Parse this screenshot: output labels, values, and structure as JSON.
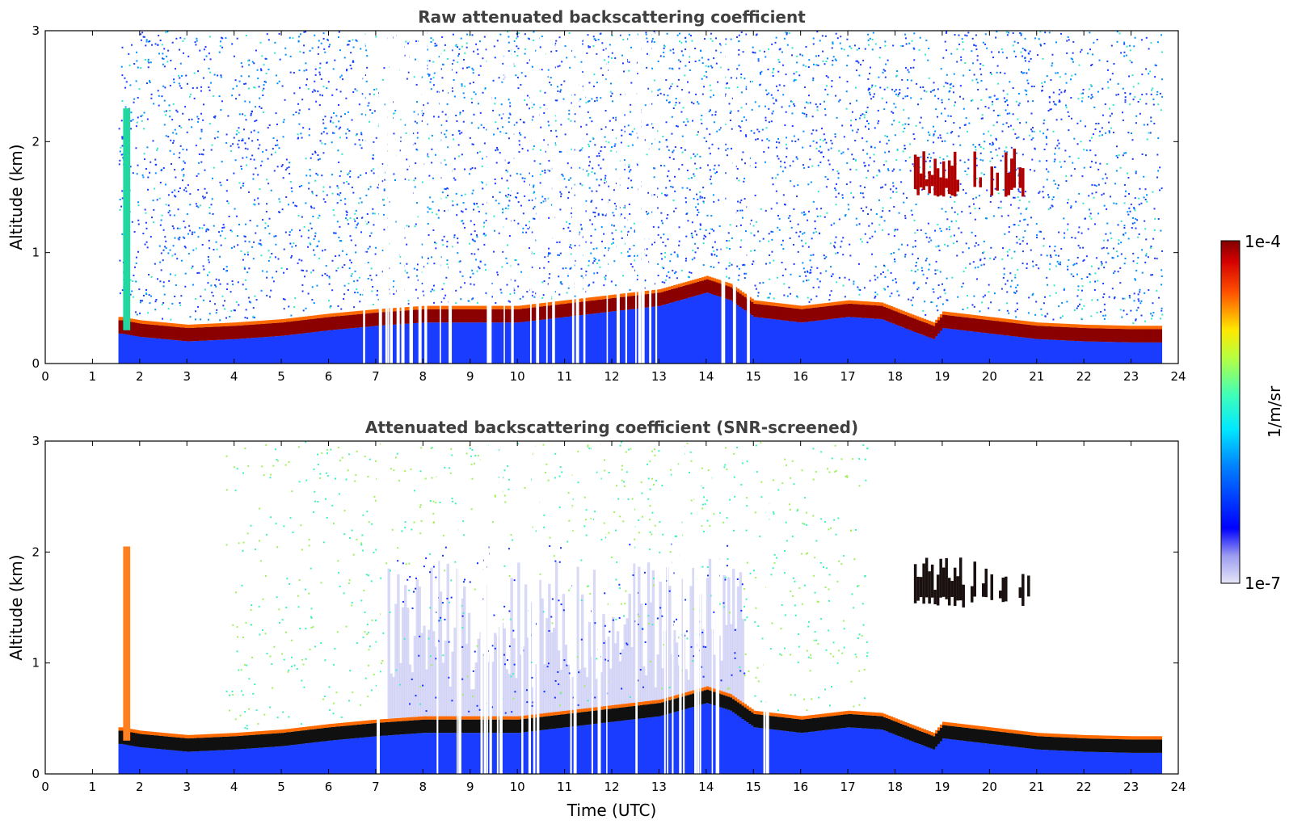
{
  "chart_data": [
    {
      "type": "heatmap",
      "title": "Raw attenuated backscattering coefficient",
      "xlabel": "",
      "ylabel": "Altitude (km)",
      "xlim": [
        0,
        24
      ],
      "ylim": [
        0,
        3
      ],
      "x_ticks": [
        "0",
        "1",
        "2",
        "3",
        "4",
        "5",
        "6",
        "7",
        "8",
        "9",
        "10",
        "11",
        "12",
        "13",
        "14",
        "15",
        "16",
        "17",
        "18",
        "19",
        "20",
        "21",
        "22",
        "23",
        "24"
      ],
      "y_ticks": [
        "0",
        "1",
        "2",
        "3"
      ],
      "data_time_range": [
        1.55,
        23.65
      ],
      "aerosol_layer_top_km": {
        "time": [
          1.6,
          2,
          3,
          4,
          5,
          6,
          7,
          8,
          9,
          10,
          11,
          12,
          13,
          14,
          14.5,
          15,
          16,
          17,
          17.7,
          18.3,
          18.8,
          19,
          20,
          21,
          22,
          23,
          23.65
        ],
        "height": [
          0.35,
          0.32,
          0.28,
          0.3,
          0.33,
          0.38,
          0.42,
          0.45,
          0.45,
          0.45,
          0.5,
          0.55,
          0.6,
          0.72,
          0.65,
          0.5,
          0.45,
          0.5,
          0.48,
          0.38,
          0.3,
          0.4,
          0.35,
          0.3,
          0.28,
          0.27,
          0.27
        ]
      },
      "elevated_cloud": {
        "time_range": [
          18.4,
          20.8
        ],
        "altitude_km": [
          1.5,
          1.95
        ]
      },
      "screened": false
    },
    {
      "type": "heatmap",
      "title": "Attenuated backscattering coefficient (SNR-screened)",
      "xlabel": "Time (UTC)",
      "ylabel": "Altitude (km)",
      "xlim": [
        0,
        24
      ],
      "ylim": [
        0,
        3
      ],
      "x_ticks": [
        "0",
        "1",
        "2",
        "3",
        "4",
        "5",
        "6",
        "7",
        "8",
        "9",
        "10",
        "11",
        "12",
        "13",
        "14",
        "15",
        "16",
        "17",
        "18",
        "19",
        "20",
        "21",
        "22",
        "23",
        "24"
      ],
      "y_ticks": [
        "0",
        "1",
        "2",
        "3"
      ],
      "data_time_range": [
        1.55,
        23.65
      ],
      "aerosol_layer_top_km": {
        "time": [
          1.6,
          2,
          3,
          4,
          5,
          6,
          7,
          8,
          9,
          10,
          11,
          12,
          13,
          14,
          14.5,
          15,
          16,
          17,
          17.7,
          18.3,
          18.8,
          19,
          20,
          21,
          22,
          23,
          23.65
        ],
        "height": [
          0.35,
          0.32,
          0.28,
          0.3,
          0.33,
          0.38,
          0.42,
          0.45,
          0.45,
          0.45,
          0.5,
          0.55,
          0.6,
          0.72,
          0.65,
          0.5,
          0.45,
          0.5,
          0.48,
          0.38,
          0.3,
          0.4,
          0.35,
          0.3,
          0.28,
          0.27,
          0.27
        ]
      },
      "elevated_cloud": {
        "time_range": [
          18.4,
          20.8
        ],
        "altitude_km": [
          1.5,
          1.95
        ]
      },
      "screened": true
    }
  ],
  "colorbar": {
    "label": "1/m/sr",
    "max_label": "1e-4",
    "min_label": "1e-7",
    "colormap": "jet",
    "scale": "log",
    "range": [
      1e-07,
      0.0001
    ]
  }
}
